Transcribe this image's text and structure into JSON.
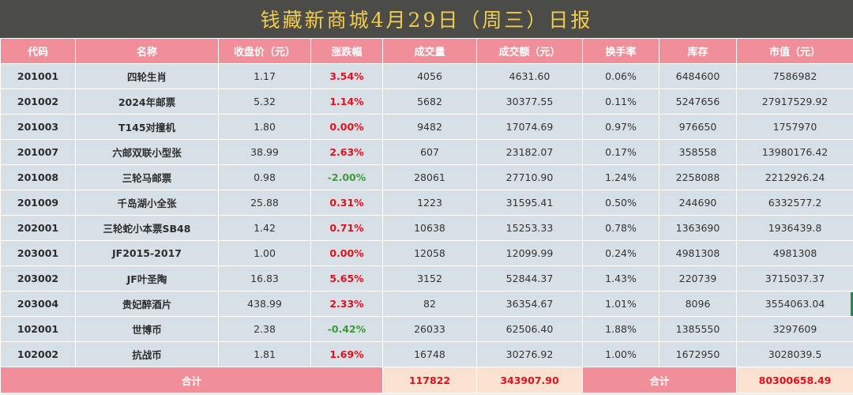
{
  "title": "钱藏新商城4月29日（周三）日报",
  "columns": [
    "代码",
    "名称",
    "收盘价（元）",
    "涨跌幅",
    "成交量",
    "成交额（元）",
    "换手率",
    "库存",
    "市值（元）"
  ],
  "rows": [
    {
      "code": "201001",
      "name": "四轮生肖",
      "close": "1.17",
      "change": "3.54%",
      "dir": "up",
      "volume": "4056",
      "amount": "4631.60",
      "turnover": "0.06%",
      "stock": "6484600",
      "cap": "7586982"
    },
    {
      "code": "201002",
      "name": "2024年邮票",
      "close": "5.32",
      "change": "1.14%",
      "dir": "up",
      "volume": "5682",
      "amount": "30377.55",
      "turnover": "0.11%",
      "stock": "5247656",
      "cap": "27917529.92"
    },
    {
      "code": "201003",
      "name": "T145对撞机",
      "close": "1.80",
      "change": "0.00%",
      "dir": "flat",
      "volume": "9482",
      "amount": "17074.69",
      "turnover": "0.97%",
      "stock": "976650",
      "cap": "1757970"
    },
    {
      "code": "201007",
      "name": "六邮双联小型张",
      "close": "38.99",
      "change": "2.63%",
      "dir": "up",
      "volume": "607",
      "amount": "23182.07",
      "turnover": "0.17%",
      "stock": "358558",
      "cap": "13980176.42"
    },
    {
      "code": "201008",
      "name": "三轮马邮票",
      "close": "0.98",
      "change": "-2.00%",
      "dir": "down",
      "volume": "28061",
      "amount": "27710.90",
      "turnover": "1.24%",
      "stock": "2258088",
      "cap": "2212926.24"
    },
    {
      "code": "201009",
      "name": "千岛湖小全张",
      "close": "25.88",
      "change": "0.31%",
      "dir": "up",
      "volume": "1223",
      "amount": "31595.41",
      "turnover": "0.50%",
      "stock": "244690",
      "cap": "6332577.2"
    },
    {
      "code": "202001",
      "name": "三轮蛇小本票SB48",
      "close": "1.42",
      "change": "0.71%",
      "dir": "up",
      "volume": "10638",
      "amount": "15253.33",
      "turnover": "0.78%",
      "stock": "1363690",
      "cap": "1936439.8"
    },
    {
      "code": "203001",
      "name": "JF2015-2017",
      "close": "1.00",
      "change": "0.00%",
      "dir": "flat",
      "volume": "12058",
      "amount": "12099.99",
      "turnover": "0.24%",
      "stock": "4981308",
      "cap": "4981308"
    },
    {
      "code": "203002",
      "name": "JF叶圣陶",
      "close": "16.83",
      "change": "5.65%",
      "dir": "up",
      "volume": "3152",
      "amount": "52844.37",
      "turnover": "1.43%",
      "stock": "220739",
      "cap": "3715037.37"
    },
    {
      "code": "203004",
      "name": "贵妃醉酒片",
      "close": "438.99",
      "change": "2.33%",
      "dir": "up",
      "volume": "82",
      "amount": "36354.67",
      "turnover": "1.01%",
      "stock": "8096",
      "cap": "3554063.04"
    },
    {
      "code": "102001",
      "name": "世博币",
      "close": "2.38",
      "change": "-0.42%",
      "dir": "down",
      "volume": "26033",
      "amount": "62506.40",
      "turnover": "1.88%",
      "stock": "1385550",
      "cap": "3297609"
    },
    {
      "code": "102002",
      "name": "抗战币",
      "close": "1.81",
      "change": "1.69%",
      "dir": "up",
      "volume": "16748",
      "amount": "30276.92",
      "turnover": "1.00%",
      "stock": "1672950",
      "cap": "3028039.5"
    }
  ],
  "totals": {
    "label_left": "合计",
    "volume": "117822",
    "amount": "343907.90",
    "label_right": "合计",
    "cap": "80300658.49"
  },
  "colors": {
    "title_bg": "#4b4b47",
    "title_text": "#f2cc4e",
    "header_bg": "#f08f99",
    "row_bg": "#d7e0e6",
    "up": "#e0101e",
    "down": "#3d9a3c",
    "total_bg": "#fbe1cf"
  }
}
